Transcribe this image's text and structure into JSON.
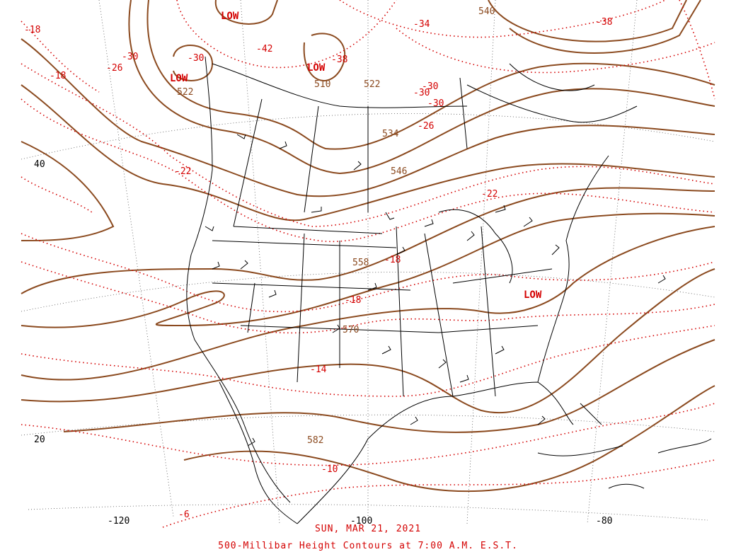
{
  "caption": {
    "date": "SUN, MAR 21, 2021",
    "title": "500-Millibar Height Contours at 7:00 A.M. E.S.T."
  },
  "colors": {
    "height_contour": "#8b4a1f",
    "temperature_isotherm": "#d40000",
    "geography": "#000000",
    "graticule": "#555555"
  },
  "axis_labels": {
    "lat_40": "40",
    "lat_20": "20",
    "lon_120": "-120",
    "lon_100": "-100",
    "lon_80": "-80"
  },
  "lows": [
    "LOW",
    "LOW",
    "LOW",
    "LOW"
  ],
  "height_labels": [
    "510",
    "522",
    "522",
    "534",
    "546",
    "558",
    "570",
    "582",
    "540"
  ],
  "temperature_labels": [
    "-18",
    "-18",
    "-30",
    "-26",
    "-30",
    "-42",
    "-38",
    "-34",
    "-38",
    "-30",
    "-30",
    "-30",
    "-26",
    "-22",
    "-22",
    "-18",
    "-18",
    "-14",
    "-10",
    "-6"
  ]
}
